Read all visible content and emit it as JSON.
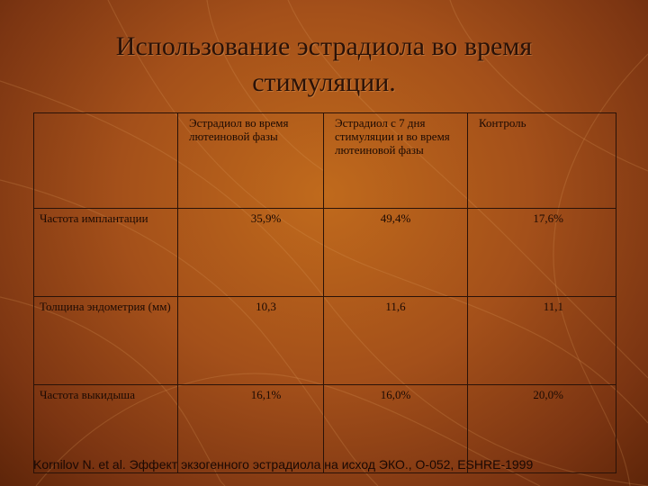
{
  "slide": {
    "title_line1": "Использование эстрадиола во время",
    "title_line2": "стимуляции.",
    "citation": "Kornilov N. et al. Эффект экзогенного эстрадиола на исход ЭКО., O-052, ESHRE-1999"
  },
  "table": {
    "columns": [
      "",
      "Эстрадиол во время лютеиновой фазы",
      "Эстрадиол с 7 дня стимуляции и во время лютеиновой фазы",
      "Контроль"
    ],
    "rows": [
      {
        "label": "Частота имплантации",
        "values": [
          "35,9%",
          "49,4%",
          "17,6%"
        ]
      },
      {
        "label": "Толщина эндометрия (мм)",
        "values": [
          "10,3",
          "11,6",
          "11,1"
        ]
      },
      {
        "label": "Частота выкидыша",
        "values": [
          "16,1%",
          "16,0%",
          "20,0%"
        ]
      }
    ]
  },
  "colors": {
    "background_center": "#c06a1c",
    "background_edge": "#5e2509",
    "text": "#1c0a03"
  }
}
